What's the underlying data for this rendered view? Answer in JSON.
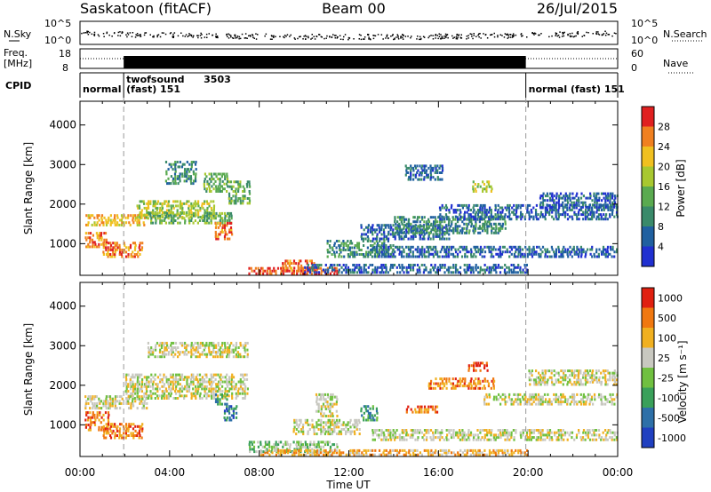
{
  "header": {
    "station": "Saskatoon (fitACF)",
    "beam": "Beam 00",
    "date": "26/Jul/2015"
  },
  "noise_panel": {
    "left_label": "N.Sky",
    "right_label": "N.Search",
    "left_ticks": [
      "10^5",
      "10^0"
    ],
    "right_ticks": [
      "10^5",
      "10^0"
    ]
  },
  "freq_panel": {
    "left_label_1": "Freq.",
    "left_label_2": "[MHz]",
    "right_label": "Nave",
    "left_ticks": [
      "18",
      "8"
    ],
    "right_ticks": [
      "60",
      "0"
    ]
  },
  "cpid_panel": {
    "label": "CPID",
    "segments": [
      {
        "name": "normal",
        "id": "",
        "start_h": 0,
        "end_h": 1.95
      },
      {
        "name": "twofsound",
        "id": "3503",
        "sub": "(fast) 151",
        "start_h": 1.95,
        "end_h": 19.9
      },
      {
        "name": "normal (fast)",
        "id": "151",
        "start_h": 19.9,
        "end_h": 24
      }
    ]
  },
  "colors": {
    "power_scale": [
      "#2030d0",
      "#2060a0",
      "#3a8a6a",
      "#5aaa50",
      "#a8c830",
      "#f0c020",
      "#f08020",
      "#e02020"
    ],
    "velocity_scale": [
      "#2040c0",
      "#2e70a8",
      "#3aa05a",
      "#70c040",
      "#c8c8c0",
      "#f0b020",
      "#f07810",
      "#e02010"
    ],
    "velocity_ground": "#c8c8c0"
  },
  "chart_data": [
    {
      "type": "heatmap",
      "name": "power",
      "ylabel": "Slant Range [km]",
      "colorbar_label": "Power [dB]",
      "colorbar_ticks": [
        "28",
        "24",
        "20",
        "16",
        "12",
        "8",
        "4"
      ],
      "xlim": [
        0,
        24
      ],
      "ylim": [
        200,
        4600
      ],
      "yticks": [
        "4000",
        "3000",
        "2000",
        "1000"
      ],
      "regions": [
        {
          "x": [
            0.2,
            3.0
          ],
          "y": [
            1450,
            1750
          ],
          "level": 5
        },
        {
          "x": [
            0.2,
            1.2
          ],
          "y": [
            900,
            1300
          ],
          "level": 6
        },
        {
          "x": [
            1.0,
            2.8
          ],
          "y": [
            650,
            1050
          ],
          "level": 6
        },
        {
          "x": [
            2.5,
            6.0
          ],
          "y": [
            1650,
            2100
          ],
          "level": 4
        },
        {
          "x": [
            3.0,
            6.8
          ],
          "y": [
            1500,
            1800
          ],
          "level": 3
        },
        {
          "x": [
            5.5,
            6.6
          ],
          "y": [
            2300,
            2800
          ],
          "level": 3
        },
        {
          "x": [
            6.0,
            6.8
          ],
          "y": [
            1100,
            1550
          ],
          "level": 6
        },
        {
          "x": [
            3.8,
            5.2
          ],
          "y": [
            2500,
            3100
          ],
          "level": 2
        },
        {
          "x": [
            7.5,
            11.5
          ],
          "y": [
            220,
            420
          ],
          "level": 7
        },
        {
          "x": [
            9.0,
            10.5
          ],
          "y": [
            300,
            600
          ],
          "level": 6
        },
        {
          "x": [
            11.0,
            14.0
          ],
          "y": [
            650,
            1100
          ],
          "level": 2
        },
        {
          "x": [
            12.5,
            16.5
          ],
          "y": [
            1100,
            1500
          ],
          "level": 1
        },
        {
          "x": [
            14.0,
            19.0
          ],
          "y": [
            1250,
            1700
          ],
          "level": 2
        },
        {
          "x": [
            16.0,
            24.0
          ],
          "y": [
            1600,
            2000
          ],
          "level": 1
        },
        {
          "x": [
            13.0,
            24.0
          ],
          "y": [
            650,
            950
          ],
          "level": 1
        },
        {
          "x": [
            17.5,
            18.4
          ],
          "y": [
            2300,
            2600
          ],
          "level": 4
        },
        {
          "x": [
            20.5,
            24.0
          ],
          "y": [
            1900,
            2300
          ],
          "level": 1
        },
        {
          "x": [
            10.0,
            20.0
          ],
          "y": [
            250,
            500
          ],
          "level": 1
        },
        {
          "x": [
            6.6,
            7.6
          ],
          "y": [
            2000,
            2600
          ],
          "level": 3
        },
        {
          "x": [
            14.5,
            16.2
          ],
          "y": [
            2600,
            3000
          ],
          "level": 1
        }
      ]
    },
    {
      "type": "heatmap",
      "name": "velocity",
      "ylabel": "Slant Range [km]",
      "xlabel": "Time UT",
      "colorbar_label": "Velocity [m s⁻¹]",
      "colorbar_ticks": [
        "1000",
        "500",
        "100",
        "25",
        "-25",
        "-100",
        "-500",
        "-1000"
      ],
      "xlim": [
        0,
        24
      ],
      "ylim": [
        200,
        4600
      ],
      "yticks": [
        "4000",
        "3000",
        "2000",
        "1000"
      ],
      "xticks": [
        "00:00",
        "04:00",
        "08:00",
        "12:00",
        "16:00",
        "20:00",
        "00:00"
      ],
      "regions": [
        {
          "x": [
            0.2,
            1.3
          ],
          "y": [
            850,
            1350
          ],
          "level": 6
        },
        {
          "x": [
            1.0,
            2.8
          ],
          "y": [
            650,
            1050
          ],
          "level": 6
        },
        {
          "x": [
            2.0,
            7.5
          ],
          "y": [
            1650,
            2300
          ],
          "level": 4
        },
        {
          "x": [
            3.0,
            7.5
          ],
          "y": [
            2700,
            3100
          ],
          "level": 4
        },
        {
          "x": [
            0.2,
            3.0
          ],
          "y": [
            1400,
            1750
          ],
          "level": 4
        },
        {
          "x": [
            6.4,
            7.0
          ],
          "y": [
            1100,
            1500
          ],
          "level": 1
        },
        {
          "x": [
            6.0,
            6.6
          ],
          "y": [
            1500,
            1800
          ],
          "level": 2
        },
        {
          "x": [
            7.5,
            11.5
          ],
          "y": [
            300,
            600
          ],
          "level": 3
        },
        {
          "x": [
            9.5,
            12.5
          ],
          "y": [
            750,
            1150
          ],
          "level": 4
        },
        {
          "x": [
            13.0,
            24.0
          ],
          "y": [
            600,
            900
          ],
          "level": 4
        },
        {
          "x": [
            14.5,
            16.0
          ],
          "y": [
            1300,
            1500
          ],
          "level": 6
        },
        {
          "x": [
            15.5,
            18.5
          ],
          "y": [
            1900,
            2200
          ],
          "level": 6
        },
        {
          "x": [
            17.3,
            18.2
          ],
          "y": [
            2350,
            2600
          ],
          "level": 7
        },
        {
          "x": [
            18.0,
            24.0
          ],
          "y": [
            1500,
            1800
          ],
          "level": 4
        },
        {
          "x": [
            20.0,
            24.0
          ],
          "y": [
            2000,
            2400
          ],
          "level": 4
        },
        {
          "x": [
            8.0,
            20.0
          ],
          "y": [
            220,
            380
          ],
          "level": 5
        },
        {
          "x": [
            10.5,
            11.5
          ],
          "y": [
            1200,
            1800
          ],
          "level": 4
        },
        {
          "x": [
            12.5,
            13.3
          ],
          "y": [
            1100,
            1500
          ],
          "level": 2
        }
      ]
    }
  ]
}
